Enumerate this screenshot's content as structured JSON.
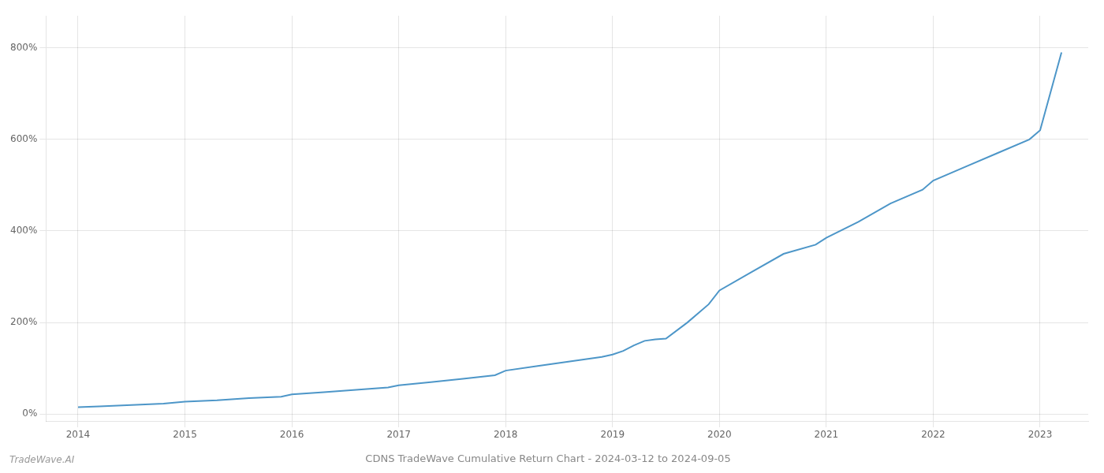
{
  "chart_data": {
    "type": "line",
    "title": "CDNS TradeWave Cumulative Return Chart - 2024-03-12 to 2024-09-05",
    "annotations": [
      "TradeWave.AI"
    ],
    "x": [
      2014.0,
      2014.2,
      2014.5,
      2014.8,
      2015.0,
      2015.3,
      2015.6,
      2015.9,
      2016.0,
      2016.3,
      2016.6,
      2016.9,
      2017.0,
      2017.3,
      2017.6,
      2017.9,
      2018.0,
      2018.3,
      2018.6,
      2018.9,
      2019.0,
      2019.1,
      2019.2,
      2019.3,
      2019.4,
      2019.5,
      2019.7,
      2019.9,
      2020.0,
      2020.3,
      2020.6,
      2020.9,
      2021.0,
      2021.3,
      2021.6,
      2021.9,
      2022.0,
      2022.3,
      2022.6,
      2022.9,
      2023.0,
      2023.2
    ],
    "values": [
      15,
      17,
      20,
      23,
      27,
      30,
      35,
      38,
      43,
      48,
      53,
      58,
      63,
      70,
      77,
      85,
      95,
      105,
      115,
      125,
      130,
      138,
      150,
      160,
      163,
      165,
      200,
      240,
      270,
      310,
      350,
      370,
      385,
      420,
      460,
      490,
      510,
      540,
      570,
      600,
      620,
      790
    ],
    "color": "#4d96c8",
    "xlim": [
      2013.7,
      2023.45
    ],
    "ylim": [
      -15,
      870
    ],
    "xticks": [
      2014,
      2015,
      2016,
      2017,
      2018,
      2019,
      2020,
      2021,
      2022,
      2023
    ],
    "yticks": [
      {
        "value": 0,
        "label": "0%"
      },
      {
        "value": 200,
        "label": "200%"
      },
      {
        "value": 400,
        "label": "400%"
      },
      {
        "value": 600,
        "label": "600%"
      },
      {
        "value": 800,
        "label": "800%"
      }
    ],
    "grid": true
  }
}
